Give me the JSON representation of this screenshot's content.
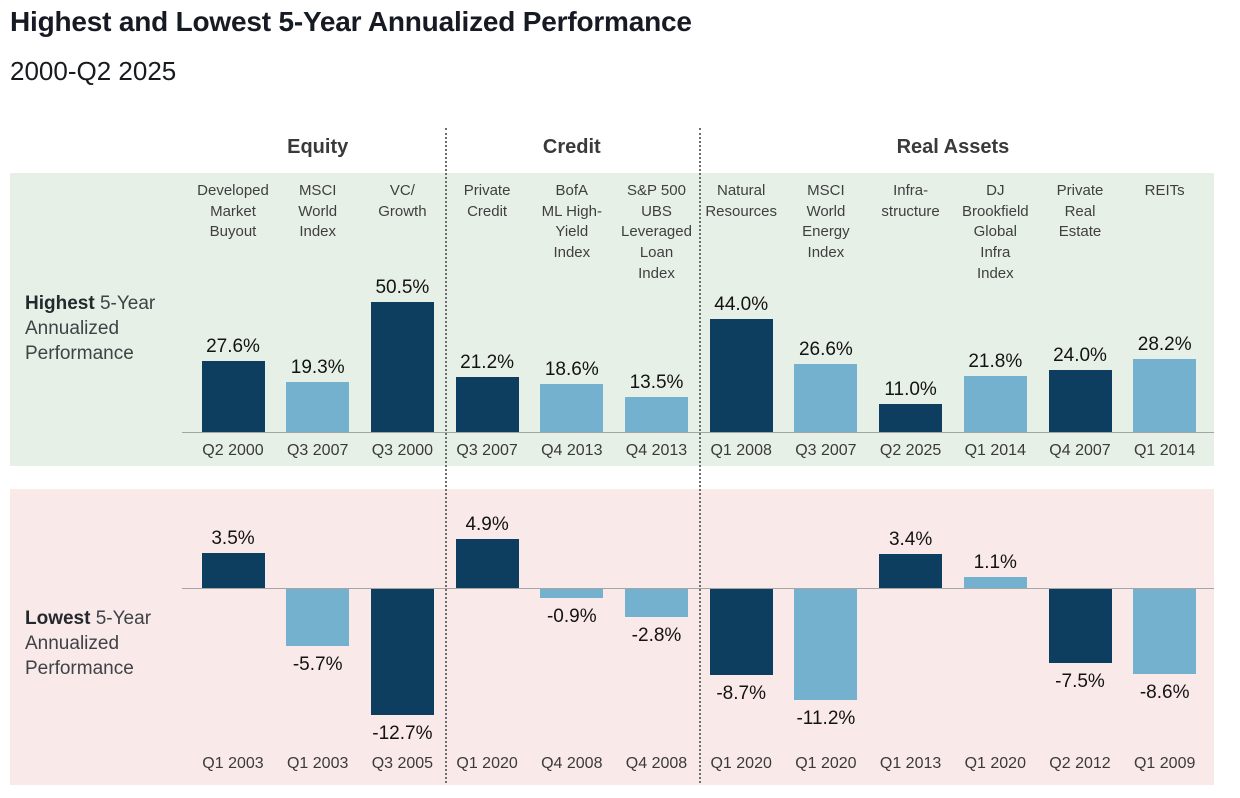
{
  "title": "Highest and Lowest 5-Year Annualized Performance",
  "subtitle": "2000-Q2 2025",
  "row_labels": {
    "highest": {
      "bold": "Highest",
      "rest": " 5-Year Annualized Performance"
    },
    "lowest": {
      "bold": "Lowest",
      "rest": " 5-Year Annualized Performance"
    }
  },
  "colors": {
    "dark_bar": "#0d3d5f",
    "light_bar": "#73b1cf",
    "top_panel_bg": "#e7f0e6",
    "bottom_panel_bg": "#fae9e9",
    "baseline": "#a5a5a5",
    "separator": "#6e6e6e"
  },
  "chart_data": {
    "type": "bar",
    "title": "Highest and Lowest 5-Year Annualized Performance",
    "subtitle": "2000-Q2 2025",
    "legend_position": "none",
    "grid": false,
    "top_panel": {
      "label": "Highest 5-Year Annualized Performance",
      "ylim": [
        0,
        55
      ],
      "unit": "%"
    },
    "bottom_panel": {
      "label": "Lowest 5-Year Annualized Performance",
      "ylim": [
        -14,
        6
      ],
      "unit": "%"
    },
    "groups": [
      {
        "label": "Equity",
        "columns": [
          0,
          1,
          2
        ]
      },
      {
        "label": "Credit",
        "columns": [
          3,
          4,
          5
        ]
      },
      {
        "label": "Real Assets",
        "columns": [
          6,
          7,
          8,
          9,
          10,
          11
        ]
      }
    ],
    "columns": [
      {
        "group": "Equity",
        "label": "Developed\nMarket\nBuyout",
        "color": "dark",
        "highest": {
          "value": 27.6,
          "display": "27.6%",
          "period": "Q2 2000"
        },
        "lowest": {
          "value": 3.5,
          "display": "3.5%",
          "period": "Q1 2003"
        }
      },
      {
        "group": "Equity",
        "label": "MSCI\nWorld\nIndex",
        "color": "light",
        "highest": {
          "value": 19.3,
          "display": "19.3%",
          "period": "Q3 2007"
        },
        "lowest": {
          "value": -5.7,
          "display": "-5.7%",
          "period": "Q1 2003"
        }
      },
      {
        "group": "Equity",
        "label": "VC/\nGrowth",
        "color": "dark",
        "highest": {
          "value": 50.5,
          "display": "50.5%",
          "period": "Q3 2000"
        },
        "lowest": {
          "value": -12.7,
          "display": "-12.7%",
          "period": "Q3 2005"
        }
      },
      {
        "group": "Credit",
        "label": "Private\nCredit",
        "color": "dark",
        "highest": {
          "value": 21.2,
          "display": "21.2%",
          "period": "Q3 2007"
        },
        "lowest": {
          "value": 4.9,
          "display": "4.9%",
          "period": "Q1 2020"
        }
      },
      {
        "group": "Credit",
        "label": "BofA\nML High-\nYield\nIndex",
        "color": "light",
        "highest": {
          "value": 18.6,
          "display": "18.6%",
          "period": "Q4 2013"
        },
        "lowest": {
          "value": -0.9,
          "display": "-0.9%",
          "period": "Q4 2008"
        }
      },
      {
        "group": "Credit",
        "label": "S&P 500\nUBS\nLeveraged\nLoan\nIndex",
        "color": "light",
        "highest": {
          "value": 13.5,
          "display": "13.5%",
          "period": "Q4 2013"
        },
        "lowest": {
          "value": -2.8,
          "display": "-2.8%",
          "period": "Q4 2008"
        }
      },
      {
        "group": "Real Assets",
        "label": "Natural\nResources",
        "color": "dark",
        "highest": {
          "value": 44.0,
          "display": "44.0%",
          "period": "Q1 2008"
        },
        "lowest": {
          "value": -8.7,
          "display": "-8.7%",
          "period": "Q1 2020"
        }
      },
      {
        "group": "Real Assets",
        "label": "MSCI\nWorld\nEnergy\nIndex",
        "color": "light",
        "highest": {
          "value": 26.6,
          "display": "26.6%",
          "period": "Q3 2007"
        },
        "lowest": {
          "value": -11.2,
          "display": "-11.2%",
          "period": "Q1 2020"
        }
      },
      {
        "group": "Real Assets",
        "label": "Infra-\nstructure",
        "color": "dark",
        "highest": {
          "value": 11.0,
          "display": "11.0%",
          "period": "Q2 2025"
        },
        "lowest": {
          "value": 3.4,
          "display": "3.4%",
          "period": "Q1 2013"
        }
      },
      {
        "group": "Real Assets",
        "label": "DJ\nBrookfield\nGlobal\nInfra\nIndex",
        "color": "light",
        "highest": {
          "value": 21.8,
          "display": "21.8%",
          "period": "Q1 2014"
        },
        "lowest": {
          "value": 1.1,
          "display": "1.1%",
          "period": "Q1 2020"
        }
      },
      {
        "group": "Real Assets",
        "label": "Private\nReal\nEstate",
        "color": "dark",
        "highest": {
          "value": 24.0,
          "display": "24.0%",
          "period": "Q4 2007"
        },
        "lowest": {
          "value": -7.5,
          "display": "-7.5%",
          "period": "Q2 2012"
        }
      },
      {
        "group": "Real Assets",
        "label": "REITs",
        "color": "light",
        "highest": {
          "value": 28.2,
          "display": "28.2%",
          "period": "Q1 2014"
        },
        "lowest": {
          "value": -8.6,
          "display": "-8.6%",
          "period": "Q1 2009"
        }
      }
    ]
  }
}
